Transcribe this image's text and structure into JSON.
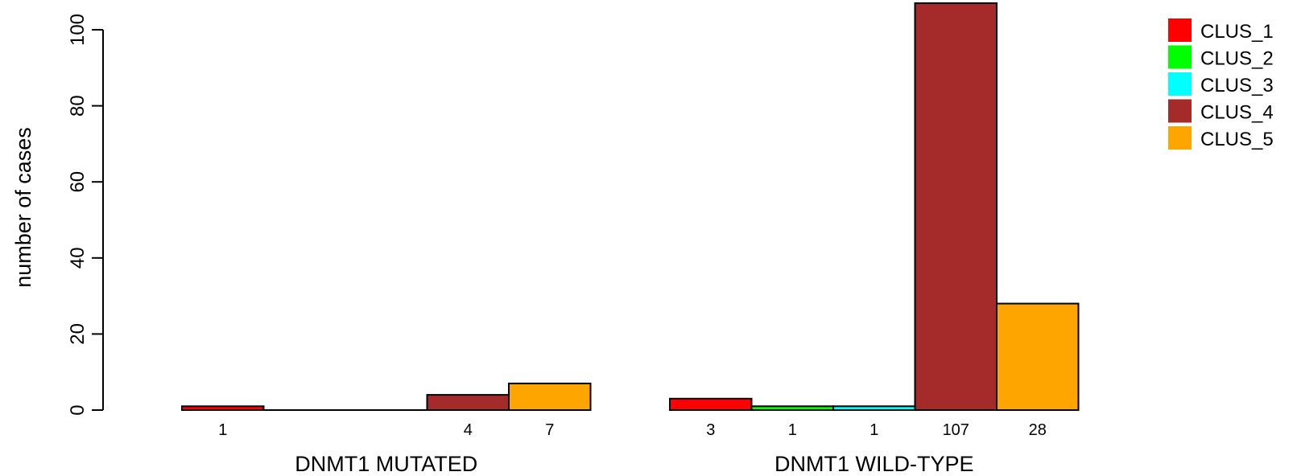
{
  "chart_data": {
    "type": "bar",
    "title": "",
    "xlabel": "",
    "ylabel": "number of cases",
    "ylim": [
      0,
      107
    ],
    "yticks": [
      0,
      20,
      40,
      60,
      80,
      100
    ],
    "grid": false,
    "legend_position": "top-right",
    "categories": [
      "DNMT1 MUTATED",
      "DNMT1 WILD-TYPE"
    ],
    "series": [
      {
        "name": "CLUS_1",
        "color": "#FF0000",
        "values": [
          1,
          3
        ]
      },
      {
        "name": "CLUS_2",
        "color": "#00FF00",
        "values": [
          0,
          1
        ]
      },
      {
        "name": "CLUS_3",
        "color": "#00FFFF",
        "values": [
          0,
          1
        ]
      },
      {
        "name": "CLUS_4",
        "color": "#A52A2A",
        "values": [
          4,
          107
        ]
      },
      {
        "name": "CLUS_5",
        "color": "#FFA500",
        "values": [
          7,
          28
        ]
      }
    ],
    "count_labels": [
      [
        "1",
        "",
        "",
        "4",
        "7"
      ],
      [
        "3",
        "1",
        "1",
        "107",
        "28"
      ]
    ]
  }
}
